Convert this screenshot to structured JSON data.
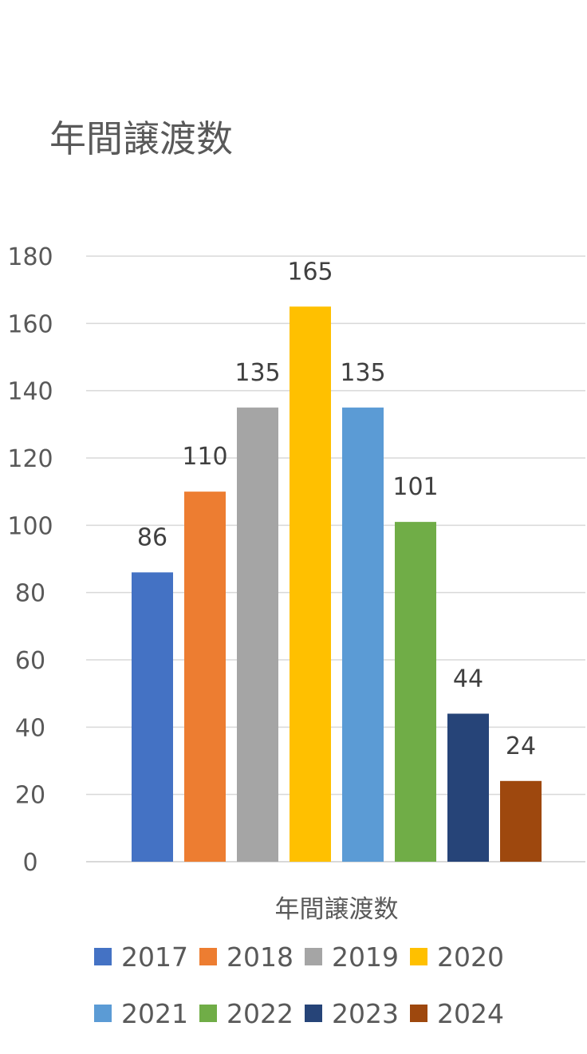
{
  "chart_data": {
    "type": "bar",
    "title": "年間譲渡数",
    "categories": [
      "年間譲渡数"
    ],
    "series": [
      {
        "name": "2017",
        "values": [
          86
        ],
        "color": "#4472C4"
      },
      {
        "name": "2018",
        "values": [
          110
        ],
        "color": "#ED7D31"
      },
      {
        "name": "2019",
        "values": [
          135
        ],
        "color": "#A5A5A5"
      },
      {
        "name": "2020",
        "values": [
          165
        ],
        "color": "#FFC000"
      },
      {
        "name": "2021",
        "values": [
          135
        ],
        "color": "#5B9BD5"
      },
      {
        "name": "2022",
        "values": [
          101
        ],
        "color": "#70AD47"
      },
      {
        "name": "2023",
        "values": [
          44
        ],
        "color": "#264478"
      },
      {
        "name": "2024",
        "values": [
          24
        ],
        "color": "#9E480E"
      }
    ],
    "ylim": [
      0,
      180
    ],
    "yticks": [
      0,
      20,
      40,
      60,
      80,
      100,
      120,
      140,
      160,
      180
    ],
    "grid": true,
    "legend_position": "bottom",
    "data_labels": true
  }
}
